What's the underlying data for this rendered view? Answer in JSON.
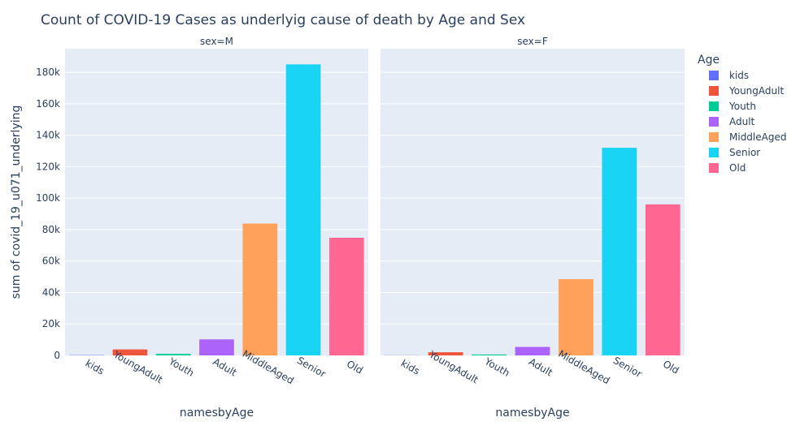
{
  "chart_data": {
    "type": "bar",
    "title": "Count of COVID-19 Cases as underlyig cause of death by Age and Sex",
    "xlabel": "namesbyAge",
    "ylabel": "sum of covid_19_u071_underlying",
    "ylim": [
      0,
      195000
    ],
    "y_ticks": [
      0,
      20000,
      40000,
      60000,
      80000,
      100000,
      120000,
      140000,
      160000,
      180000
    ],
    "y_tick_labels": [
      "0",
      "20k",
      "40k",
      "60k",
      "80k",
      "100k",
      "120k",
      "140k",
      "160k",
      "180k"
    ],
    "categories": [
      "kids",
      "YoungAdult",
      "Youth",
      "Adult",
      "MiddleAged",
      "Senior",
      "Old"
    ],
    "colors": [
      "#636efa",
      "#EF553B",
      "#00cc96",
      "#ab63fa",
      "#FFA15A",
      "#19d3f3",
      "#FF6692"
    ],
    "legend": {
      "title": "Age",
      "position": "right"
    },
    "grid": true,
    "facets": [
      {
        "label": "sex=M",
        "values": [
          200,
          3800,
          1000,
          10200,
          83800,
          185000,
          74800
        ]
      },
      {
        "label": "sex=F",
        "values": [
          100,
          2000,
          600,
          5400,
          48500,
          132000,
          96000
        ]
      }
    ]
  }
}
